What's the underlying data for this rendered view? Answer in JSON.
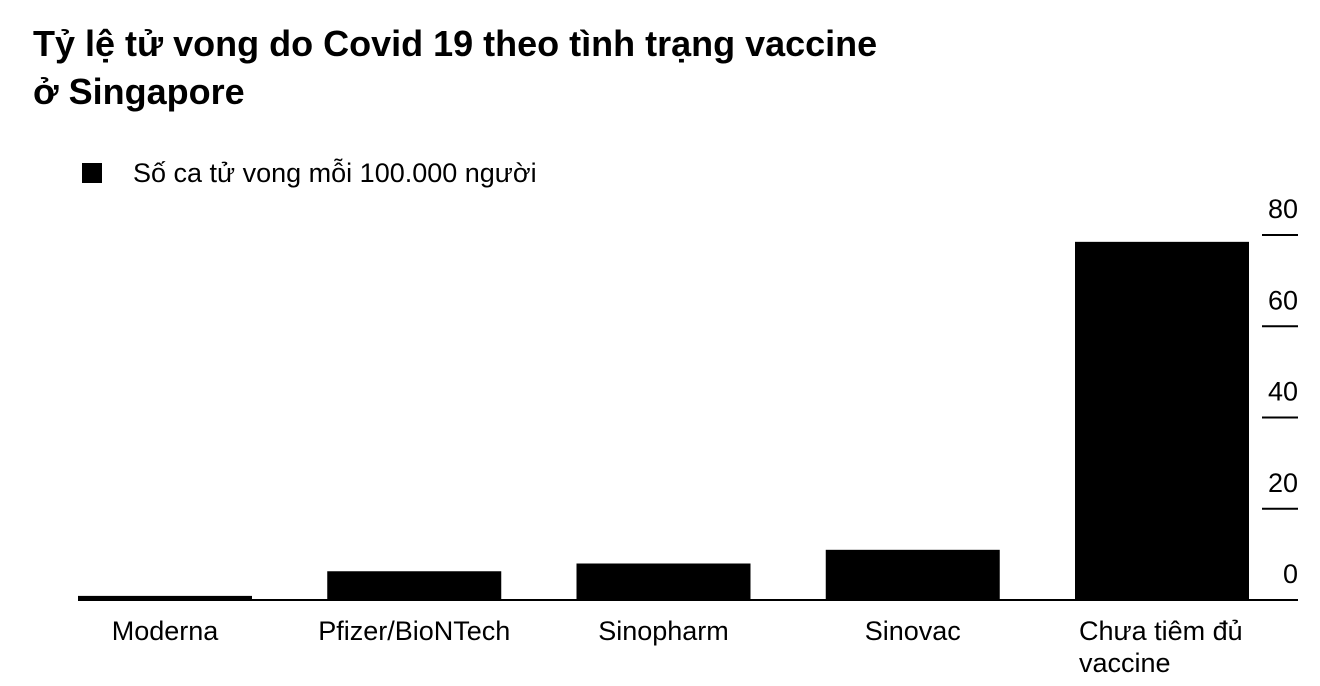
{
  "chart_data": {
    "type": "bar",
    "title_lines": [
      "Tỷ lệ tử vong do Covid 19 theo tình trạng vaccine",
      "ở Singapore"
    ],
    "legend": {
      "label": "Số ca tử vong mỗi 100.000 người",
      "position": "top-left"
    },
    "categories": [
      [
        "Moderna"
      ],
      [
        "Pfizer/BioNTech"
      ],
      [
        "Sinopharm"
      ],
      [
        "Sinovac"
      ],
      [
        "Chưa tiêm đủ",
        "vaccine"
      ]
    ],
    "series": [
      {
        "name": "Số ca tử vong mỗi 100.000 người",
        "values": [
          0.9,
          6.3,
          8.0,
          11.0,
          78.5
        ]
      }
    ],
    "ylim": [
      0,
      80
    ],
    "yticks": [
      "0",
      "20",
      "40",
      "60",
      "80"
    ],
    "y_axis_side": "right",
    "grid": false,
    "colors": {
      "bar": "#000000",
      "axis": "#000000",
      "text": "#000000"
    }
  }
}
